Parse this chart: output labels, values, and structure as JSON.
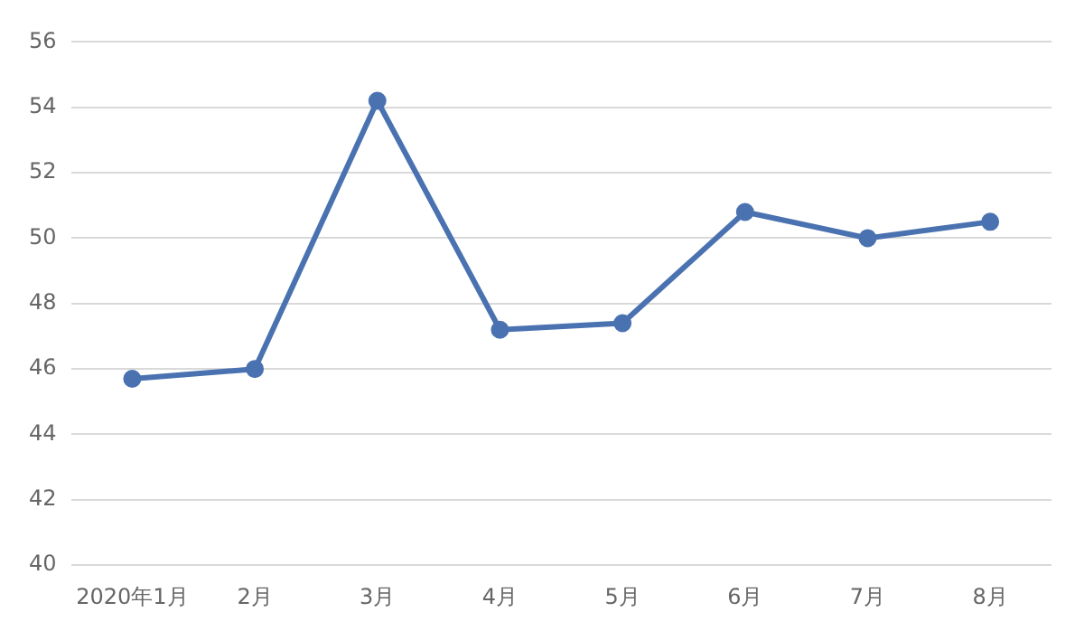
{
  "chart_data": {
    "type": "line",
    "categories": [
      "2020年1月",
      "2月",
      "3月",
      "4月",
      "5月",
      "6月",
      "7月",
      "8月"
    ],
    "series": [
      {
        "color": "#4a72b0",
        "values": [
          45.7,
          46.0,
          54.2,
          47.2,
          47.4,
          50.8,
          50.0,
          50.5
        ]
      }
    ],
    "ylim": [
      40,
      56
    ],
    "yticks": [
      40,
      42,
      44,
      46,
      48,
      50,
      52,
      54,
      56
    ],
    "grid": "y",
    "legend": false,
    "marker": "circle",
    "line_style": "solid"
  }
}
